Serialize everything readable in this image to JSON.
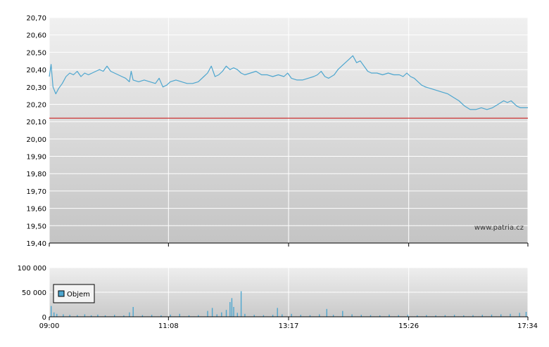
{
  "watermark": "www.patria.cz",
  "legend_label": "Objem",
  "colors": {
    "price_line": "#4da6cf",
    "reference_line": "#cc3333",
    "volume_bar": "#4da6cf",
    "plot_bg_top": "#ececec",
    "plot_bg_bottom": "#c8c8c8",
    "grid": "#ffffff"
  },
  "chart_data": [
    {
      "type": "line",
      "name": "price",
      "x_unit": "time",
      "x_range": [
        "09:00",
        "17:34"
      ],
      "ylim": [
        19.4,
        20.7
      ],
      "yticks": [
        "20,70",
        "20,60",
        "20,50",
        "20,40",
        "20,30",
        "20,20",
        "20,10",
        "20,00",
        "19,90",
        "19,80",
        "19,70",
        "19,60",
        "19,50",
        "19,40"
      ],
      "reference_line": 20.12,
      "series": [
        {
          "points": [
            [
              "09:00",
              20.36
            ],
            [
              "09:02",
              20.43
            ],
            [
              "09:04",
              20.3
            ],
            [
              "09:07",
              20.26
            ],
            [
              "09:10",
              20.29
            ],
            [
              "09:14",
              20.32
            ],
            [
              "09:18",
              20.36
            ],
            [
              "09:22",
              20.38
            ],
            [
              "09:26",
              20.37
            ],
            [
              "09:30",
              20.39
            ],
            [
              "09:34",
              20.36
            ],
            [
              "09:38",
              20.38
            ],
            [
              "09:42",
              20.37
            ],
            [
              "09:46",
              20.38
            ],
            [
              "09:50",
              20.39
            ],
            [
              "09:54",
              20.4
            ],
            [
              "09:58",
              20.39
            ],
            [
              "10:02",
              20.42
            ],
            [
              "10:06",
              20.39
            ],
            [
              "10:10",
              20.38
            ],
            [
              "10:14",
              20.37
            ],
            [
              "10:18",
              20.36
            ],
            [
              "10:22",
              20.35
            ],
            [
              "10:26",
              20.33
            ],
            [
              "10:28",
              20.39
            ],
            [
              "10:30",
              20.34
            ],
            [
              "10:36",
              20.33
            ],
            [
              "10:42",
              20.34
            ],
            [
              "10:48",
              20.33
            ],
            [
              "10:54",
              20.32
            ],
            [
              "10:58",
              20.35
            ],
            [
              "11:02",
              20.3
            ],
            [
              "11:06",
              20.31
            ],
            [
              "11:10",
              20.33
            ],
            [
              "11:16",
              20.34
            ],
            [
              "11:22",
              20.33
            ],
            [
              "11:28",
              20.32
            ],
            [
              "11:34",
              20.32
            ],
            [
              "11:40",
              20.33
            ],
            [
              "11:46",
              20.36
            ],
            [
              "11:50",
              20.38
            ],
            [
              "11:54",
              20.42
            ],
            [
              "11:58",
              20.36
            ],
            [
              "12:02",
              20.37
            ],
            [
              "12:06",
              20.39
            ],
            [
              "12:10",
              20.42
            ],
            [
              "12:14",
              20.4
            ],
            [
              "12:18",
              20.41
            ],
            [
              "12:22",
              20.4
            ],
            [
              "12:26",
              20.38
            ],
            [
              "12:30",
              20.37
            ],
            [
              "12:36",
              20.38
            ],
            [
              "12:42",
              20.39
            ],
            [
              "12:48",
              20.37
            ],
            [
              "12:54",
              20.37
            ],
            [
              "13:00",
              20.36
            ],
            [
              "13:06",
              20.37
            ],
            [
              "13:12",
              20.36
            ],
            [
              "13:16",
              20.38
            ],
            [
              "13:20",
              20.35
            ],
            [
              "13:26",
              20.34
            ],
            [
              "13:32",
              20.34
            ],
            [
              "13:38",
              20.35
            ],
            [
              "13:44",
              20.36
            ],
            [
              "13:48",
              20.37
            ],
            [
              "13:52",
              20.39
            ],
            [
              "13:56",
              20.36
            ],
            [
              "14:00",
              20.35
            ],
            [
              "14:06",
              20.37
            ],
            [
              "14:10",
              20.4
            ],
            [
              "14:14",
              20.42
            ],
            [
              "14:18",
              20.44
            ],
            [
              "14:22",
              20.46
            ],
            [
              "14:26",
              20.48
            ],
            [
              "14:30",
              20.44
            ],
            [
              "14:34",
              20.45
            ],
            [
              "14:38",
              20.42
            ],
            [
              "14:42",
              20.39
            ],
            [
              "14:46",
              20.38
            ],
            [
              "14:52",
              20.38
            ],
            [
              "14:58",
              20.37
            ],
            [
              "15:04",
              20.38
            ],
            [
              "15:10",
              20.37
            ],
            [
              "15:16",
              20.37
            ],
            [
              "15:20",
              20.36
            ],
            [
              "15:24",
              20.38
            ],
            [
              "15:28",
              20.36
            ],
            [
              "15:32",
              20.35
            ],
            [
              "15:36",
              20.33
            ],
            [
              "15:40",
              20.31
            ],
            [
              "15:44",
              20.3
            ],
            [
              "15:50",
              20.29
            ],
            [
              "15:56",
              20.28
            ],
            [
              "16:02",
              20.27
            ],
            [
              "16:08",
              20.26
            ],
            [
              "16:14",
              20.24
            ],
            [
              "16:20",
              20.22
            ],
            [
              "16:26",
              20.19
            ],
            [
              "16:32",
              20.17
            ],
            [
              "16:38",
              20.17
            ],
            [
              "16:44",
              20.18
            ],
            [
              "16:50",
              20.17
            ],
            [
              "16:56",
              20.18
            ],
            [
              "17:02",
              20.2
            ],
            [
              "17:08",
              20.22
            ],
            [
              "17:12",
              20.21
            ],
            [
              "17:16",
              20.22
            ],
            [
              "17:22",
              20.19
            ],
            [
              "17:26",
              20.18
            ],
            [
              "17:34",
              20.18
            ]
          ]
        }
      ],
      "xticks": [
        "09:00",
        "11:08",
        "13:17",
        "15:26",
        "17:34"
      ],
      "grid": true
    },
    {
      "type": "bar",
      "name": "volume",
      "legend": "Objem",
      "x_unit": "time",
      "x_range": [
        "09:00",
        "17:34"
      ],
      "ylim": [
        0,
        100000
      ],
      "yticks": [
        "100 000",
        "50 000",
        "0"
      ],
      "xticks": [
        "09:00",
        "11:08",
        "13:17",
        "15:26",
        "17:34"
      ],
      "series": [
        {
          "name": "Objem",
          "bars": [
            [
              "09:02",
              22000
            ],
            [
              "09:05",
              9000
            ],
            [
              "09:08",
              6000
            ],
            [
              "09:15",
              5000
            ],
            [
              "09:22",
              4000
            ],
            [
              "09:30",
              3500
            ],
            [
              "09:38",
              5000
            ],
            [
              "09:45",
              3000
            ],
            [
              "09:52",
              4500
            ],
            [
              "10:00",
              3000
            ],
            [
              "10:10",
              4000
            ],
            [
              "10:20",
              3000
            ],
            [
              "10:26",
              9000
            ],
            [
              "10:30",
              20000
            ],
            [
              "10:40",
              3500
            ],
            [
              "10:50",
              4000
            ],
            [
              "11:00",
              3000
            ],
            [
              "11:10",
              4500
            ],
            [
              "11:20",
              6000
            ],
            [
              "11:30",
              3000
            ],
            [
              "11:40",
              3500
            ],
            [
              "11:50",
              12000
            ],
            [
              "11:55",
              18000
            ],
            [
              "12:00",
              5000
            ],
            [
              "12:05",
              9000
            ],
            [
              "12:10",
              14000
            ],
            [
              "12:14",
              30000
            ],
            [
              "12:16",
              38000
            ],
            [
              "12:18",
              20000
            ],
            [
              "12:22",
              8000
            ],
            [
              "12:26",
              52000
            ],
            [
              "12:30",
              6000
            ],
            [
              "12:40",
              4000
            ],
            [
              "12:50",
              3500
            ],
            [
              "13:00",
              4000
            ],
            [
              "13:05",
              18000
            ],
            [
              "13:10",
              5000
            ],
            [
              "13:20",
              6000
            ],
            [
              "13:30",
              4000
            ],
            [
              "13:40",
              3500
            ],
            [
              "13:50",
              5000
            ],
            [
              "13:58",
              16000
            ],
            [
              "14:05",
              4000
            ],
            [
              "14:15",
              12000
            ],
            [
              "14:25",
              5000
            ],
            [
              "14:35",
              4000
            ],
            [
              "14:45",
              3500
            ],
            [
              "14:55",
              3000
            ],
            [
              "15:05",
              4500
            ],
            [
              "15:15",
              3500
            ],
            [
              "15:25",
              4000
            ],
            [
              "15:35",
              3000
            ],
            [
              "15:45",
              3500
            ],
            [
              "15:55",
              3000
            ],
            [
              "16:05",
              3500
            ],
            [
              "16:15",
              4000
            ],
            [
              "16:25",
              3000
            ],
            [
              "16:35",
              3500
            ],
            [
              "16:45",
              4000
            ],
            [
              "16:55",
              4500
            ],
            [
              "17:05",
              5000
            ],
            [
              "17:15",
              6000
            ],
            [
              "17:25",
              8000
            ],
            [
              "17:32",
              10000
            ]
          ]
        }
      ],
      "grid": true
    }
  ]
}
